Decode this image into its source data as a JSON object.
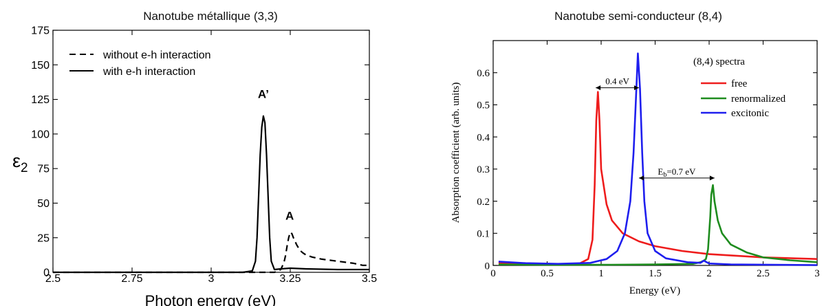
{
  "chart_data": [
    {
      "type": "line",
      "title": "Nanotube métallique (3,3)",
      "xlabel": "Photon energy (eV)",
      "ylabel_main": "ε",
      "ylabel_sub": "2",
      "xlim": [
        2.5,
        3.5
      ],
      "ylim": [
        0,
        175
      ],
      "xticks": [
        2.5,
        2.75,
        3,
        3.25,
        3.5
      ],
      "xtick_labels": [
        "2.5",
        "2.75",
        "3",
        "3.25",
        "3.5"
      ],
      "yticks": [
        0,
        25,
        50,
        75,
        100,
        125,
        150,
        175
      ],
      "ytick_labels": [
        "0",
        "25",
        "50",
        "75",
        "100",
        "125",
        "150",
        "175"
      ],
      "legend_position": "top-left",
      "grid": false,
      "series": [
        {
          "name": "without e-h interaction",
          "style": "dashed",
          "color": "#000000",
          "x": [
            2.5,
            3.0,
            3.15,
            3.2,
            3.22,
            3.23,
            3.235,
            3.24,
            3.245,
            3.25,
            3.255,
            3.26,
            3.27,
            3.28,
            3.29,
            3.3,
            3.32,
            3.35,
            3.4,
            3.45,
            3.48,
            3.5
          ],
          "y": [
            0,
            0,
            0,
            0,
            2,
            7,
            12,
            19,
            25,
            29,
            28,
            25,
            20,
            16,
            14,
            12.5,
            11,
            9.5,
            8,
            6.5,
            5,
            5
          ]
        },
        {
          "name": "with e-h interaction",
          "style": "solid",
          "color": "#000000",
          "x": [
            2.5,
            3.0,
            3.1,
            3.13,
            3.14,
            3.145,
            3.15,
            3.155,
            3.16,
            3.165,
            3.17,
            3.175,
            3.18,
            3.185,
            3.19,
            3.2,
            3.22,
            3.25,
            3.3,
            3.4,
            3.5
          ],
          "y": [
            0,
            0,
            0,
            1,
            8,
            25,
            55,
            85,
            105,
            113,
            108,
            85,
            55,
            25,
            8,
            2,
            2.5,
            3,
            2.5,
            2,
            2
          ]
        }
      ],
      "annotations": [
        {
          "text": "A’",
          "x": 3.165,
          "y": 126
        },
        {
          "text": "A",
          "x": 3.248,
          "y": 38
        }
      ]
    },
    {
      "type": "line",
      "title": "Nanotube semi-conducteur (8,4)",
      "xlabel": "Energy (eV)",
      "ylabel": "Absorption coefficient (arb. units)",
      "xlim": [
        0,
        3
      ],
      "ylim": [
        0,
        0.7
      ],
      "xticks": [
        0,
        0.5,
        1,
        1.5,
        2,
        2.5,
        3
      ],
      "xtick_labels": [
        "0",
        "0.5",
        "1",
        "1.5",
        "2",
        "2.5",
        "3"
      ],
      "yticks": [
        0,
        0.1,
        0.2,
        0.3,
        0.4,
        0.5,
        0.6
      ],
      "ytick_labels": [
        "0",
        "0.1",
        "0.2",
        "0.3",
        "0.4",
        "0.5",
        "0.6"
      ],
      "legend_title": "(8,4) spectra",
      "legend_position": "top-right",
      "grid": false,
      "series": [
        {
          "name": "free",
          "color": "#ee1c1c",
          "x": [
            0.05,
            0.3,
            0.6,
            0.8,
            0.88,
            0.92,
            0.94,
            0.955,
            0.97,
            0.985,
            1.0,
            1.05,
            1.1,
            1.2,
            1.35,
            1.5,
            1.75,
            2.0,
            2.5,
            3.0
          ],
          "y": [
            0.008,
            0.004,
            0.004,
            0.006,
            0.02,
            0.08,
            0.25,
            0.45,
            0.54,
            0.45,
            0.3,
            0.19,
            0.14,
            0.1,
            0.075,
            0.06,
            0.045,
            0.035,
            0.025,
            0.02
          ]
        },
        {
          "name": "renormalized",
          "color": "#1e8c1e",
          "x": [
            0.05,
            0.5,
            1.0,
            1.5,
            1.85,
            1.92,
            1.95,
            1.97,
            1.99,
            2.01,
            2.02,
            2.035,
            2.05,
            2.08,
            2.12,
            2.2,
            2.35,
            2.5,
            2.75,
            3.0
          ],
          "y": [
            0.003,
            0.002,
            0.002,
            0.003,
            0.005,
            0.01,
            0.015,
            0.02,
            0.05,
            0.15,
            0.22,
            0.25,
            0.2,
            0.14,
            0.1,
            0.065,
            0.04,
            0.025,
            0.016,
            0.01
          ]
        },
        {
          "name": "excitonic",
          "color": "#1e1eee",
          "x": [
            0.05,
            0.3,
            0.6,
            0.9,
            1.05,
            1.15,
            1.22,
            1.27,
            1.3,
            1.32,
            1.34,
            1.36,
            1.38,
            1.4,
            1.43,
            1.5,
            1.6,
            1.8,
            1.92,
            1.95,
            2.0,
            2.2,
            2.6,
            3.0
          ],
          "y": [
            0.012,
            0.007,
            0.005,
            0.008,
            0.02,
            0.045,
            0.1,
            0.2,
            0.35,
            0.5,
            0.66,
            0.55,
            0.35,
            0.2,
            0.1,
            0.045,
            0.022,
            0.01,
            0.008,
            0.015,
            0.006,
            0.003,
            0.002,
            0.001
          ]
        }
      ],
      "annotations": [
        {
          "text": "0.4 eV",
          "type": "double-arrow",
          "x1": 0.95,
          "x2": 1.35,
          "y": 0.553
        },
        {
          "text_main": "E",
          "text_sub": "b",
          "text_rest": "=0.7 eV",
          "type": "double-arrow",
          "x1": 1.35,
          "x2": 2.05,
          "y": 0.272
        }
      ]
    }
  ]
}
